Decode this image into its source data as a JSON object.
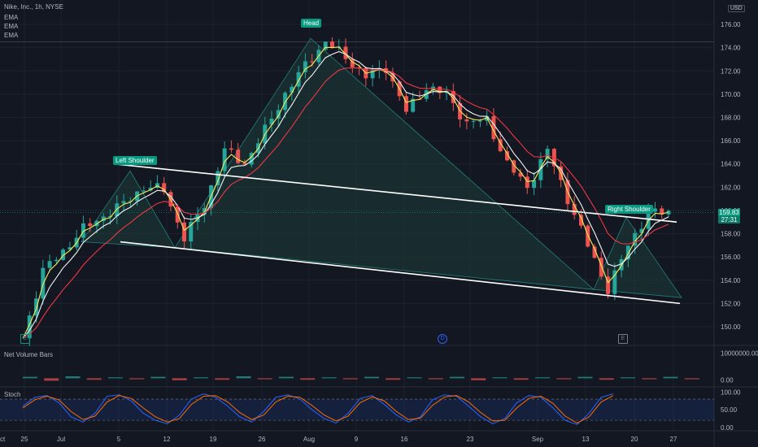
{
  "header": {
    "symbol": "Nike, Inc., 1h, NYSE",
    "ind1": "EMA",
    "ind2": "EMA",
    "ind3": "EMA",
    "currency": "USD"
  },
  "colors": {
    "bg": "#131722",
    "up": "#26a69a",
    "down": "#ef5350",
    "ema_fast": "#f7ea5b",
    "ema_mid": "#f5f5f5",
    "ema_slow": "#f23645",
    "pattern_fill": "#1c3a38",
    "pattern_line": "#26a69a",
    "stoch_k": "#2962ff",
    "stoch_d": "#ff6d00",
    "accent": "#089981"
  },
  "annotations": {
    "left_shoulder": "Left Shoulder",
    "head": "Head",
    "right_shoulder": "Right Shoulder"
  },
  "price_tag": {
    "price": "159.83",
    "countdown": "27:31"
  },
  "markers": {
    "earnings_left": "E",
    "dividend": "D",
    "earnings_right": "E"
  },
  "panes": {
    "volume_title": "Net Volume Bars",
    "stoch_title": "Stoch"
  },
  "chart_data": [
    {
      "type": "line",
      "title": "Nike, Inc., 1h, NYSE",
      "xlabel": "",
      "ylabel": "",
      "x_ticks": [
        "25",
        "Jul",
        "5",
        "12",
        "19",
        "26",
        "Aug",
        "9",
        "16",
        "23",
        "Sep",
        "13",
        "20",
        "27",
        "Oct"
      ],
      "y_ticks": [
        150.0,
        152.0,
        154.0,
        156.0,
        158.0,
        160.0,
        162.0,
        164.0,
        166.0,
        168.0,
        170.0,
        172.0,
        174.0,
        176.0
      ],
      "ylim": [
        148.6,
        177.4
      ],
      "series": [
        {
          "name": "",
          "x": [
            0,
            3,
            6,
            9,
            12,
            15,
            18,
            21,
            24,
            27,
            30,
            33,
            36,
            39,
            42,
            45,
            48,
            51,
            54,
            57,
            60,
            63,
            66,
            69,
            72,
            75,
            78,
            81,
            84,
            87,
            90,
            93,
            96
          ],
          "values": [
            149.0,
            154.8,
            156.5,
            158.4,
            159.5,
            160.6,
            162.0,
            161.8,
            157.6,
            160.5,
            165.2,
            164.0,
            166.9,
            170.0,
            172.5,
            174.5,
            173.2,
            171.5,
            172.3,
            168.5,
            170.6,
            170.0,
            167.5,
            167.8,
            164.0,
            162.0,
            165.2,
            161.0,
            157.0,
            153.2,
            157.0,
            159.8,
            159.83
          ]
        }
      ],
      "pattern": {
        "left_shoulder": 163.4,
        "head": 174.8,
        "right_shoulder": 159.4
      },
      "neckline_upper": {
        "from": 164.0,
        "to": 159.0
      },
      "neckline_lower": {
        "from": 157.3,
        "to": 152.0
      },
      "grid": true,
      "legend": "none"
    },
    {
      "type": "bar",
      "title": "Net Volume Bars",
      "y_ticks": [
        0.0,
        10000000.0
      ],
      "ylim": [
        -2000000,
        12000000
      ],
      "values": [
        0.3,
        -0.5,
        0.4,
        -0.3,
        0.2,
        -0.2,
        0.3,
        -0.4,
        0.2,
        -0.3,
        0.4,
        -0.2,
        0.3,
        -0.3,
        0.2,
        -0.2,
        0.3,
        -0.3,
        0.2,
        -0.2,
        0.3,
        -0.4,
        0.2,
        -0.3,
        0.2,
        -0.2,
        0.3,
        -0.3,
        0.2,
        -0.2,
        0.3,
        -0.2
      ]
    },
    {
      "type": "line",
      "title": "Stoch",
      "y_ticks": [
        0.0,
        50.0,
        100.0
      ],
      "ylim": [
        -5,
        110
      ],
      "levels": [
        20,
        80
      ],
      "series": [
        {
          "name": "",
          "values": [
            60,
            85,
            90,
            70,
            30,
            15,
            40,
            88,
            92,
            75,
            40,
            20,
            10,
            35,
            80,
            95,
            85,
            60,
            30,
            15,
            45,
            85,
            92,
            80,
            50,
            25,
            12,
            40,
            82,
            90,
            65,
            35,
            15,
            30,
            78,
            92,
            88,
            60,
            30,
            10,
            25,
            70,
            90,
            85,
            55,
            20,
            8,
            40,
            85,
            95
          ]
        },
        {
          "name": "",
          "values": [
            55,
            78,
            88,
            78,
            45,
            22,
            32,
            72,
            90,
            82,
            55,
            30,
            15,
            25,
            65,
            88,
            90,
            72,
            42,
            22,
            35,
            72,
            88,
            85,
            62,
            35,
            18,
            32,
            70,
            86,
            75,
            45,
            22,
            26,
            62,
            86,
            90,
            72,
            42,
            18,
            20,
            55,
            82,
            88,
            68,
            32,
            12,
            30,
            72,
            90
          ]
        }
      ]
    }
  ]
}
